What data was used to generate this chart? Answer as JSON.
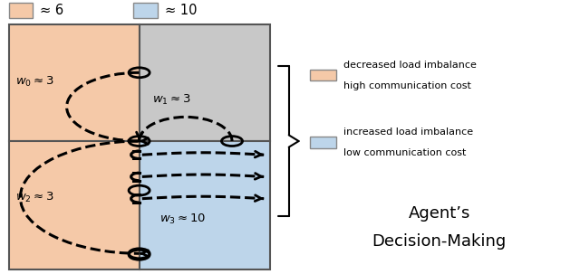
{
  "fig_width": 6.4,
  "fig_height": 3.03,
  "dpi": 100,
  "salmon_color": "#F5C9A8",
  "blue_color": "#BDD5EA",
  "gray_color": "#C8C8C8",
  "legend_salmon_label1": "decreased load imbalance",
  "legend_salmon_label2": "high communication cost",
  "legend_blue_label1": "increased load imbalance",
  "legend_blue_label2": "low communication cost",
  "title_line1": "Agent’s",
  "title_line2": "Decision-Making",
  "top_label_salmon": "≈ 6",
  "top_label_blue": "≈ 10"
}
